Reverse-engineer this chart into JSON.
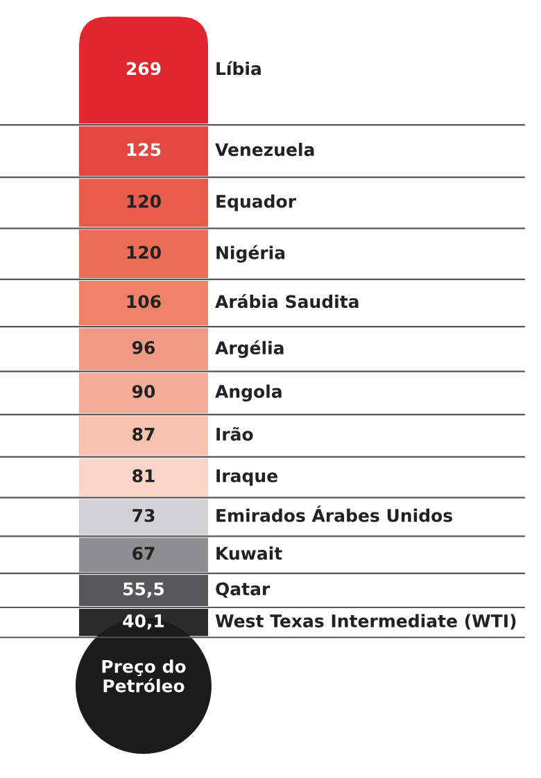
{
  "chart_data": {
    "type": "other",
    "title": "Preço do Petróleo",
    "categories": [
      "Líbia",
      "Venezuela",
      "Equador",
      "Nigéria",
      "Arábia Saudita",
      "Argélia",
      "Angola",
      "Irão",
      "Iraque",
      "Emirados Árabes Unidos",
      "Kuwait",
      "Qatar",
      "West Texas Intermediate (WTI)"
    ],
    "values": [
      269,
      125,
      120,
      120,
      106,
      96,
      90,
      87,
      81,
      73,
      67,
      55.5,
      40.1
    ],
    "value_labels": [
      "269",
      "125",
      "120",
      "120",
      "106",
      "96",
      "90",
      "87",
      "81",
      "73",
      "67",
      "55,5",
      "40,1"
    ],
    "colors": [
      "#e0262e",
      "#e4473f",
      "#e85c4a",
      "#eb6d57",
      "#ee8168",
      "#f19a83",
      "#f4ad98",
      "#f7c2b0",
      "#fad5c7",
      "#d2d2d4",
      "#8e8e90",
      "#58585a",
      "#2b2b2b"
    ]
  }
}
